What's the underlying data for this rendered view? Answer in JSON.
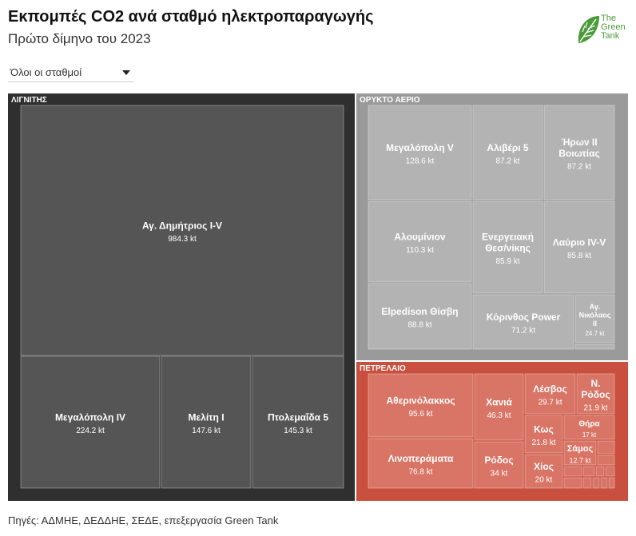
{
  "header": {
    "title": "Εκπομπές CO2 ανά σταθμό ηλεκτροπαραγωγής",
    "subtitle": "Πρώτο δίμηνο του 2023"
  },
  "logo": {
    "line1": "The",
    "line2": "Green",
    "line3": "Tank"
  },
  "filter": {
    "selected": "Όλοι οι σταθμοί"
  },
  "footer": {
    "source": "Πηγές: ΑΔΜΗΕ, ΔΕΔΔΗΕ, ΣΕΔΕ, επεξεργασία Green Tank"
  },
  "colors": {
    "lignite_group": "#2f2f2f",
    "lignite_tile": "#555555",
    "gas_group": "#9a9a9a",
    "gas_tile": "#b3b3b3",
    "oil_group": "#c9503e",
    "oil_tile": "#d97566",
    "logo_green": "#4a9a3a"
  },
  "chart_data": {
    "type": "treemap",
    "unit": "kt",
    "groups": [
      {
        "name": "ΛΙΓΝΙΤΗΣ",
        "items": [
          {
            "name": "Αγ. Δημήτριος I-V",
            "value": 984.3,
            "value_label": "984.3 kt"
          },
          {
            "name": "Μεγαλόπολη IV",
            "value": 224.2,
            "value_label": "224.2 kt"
          },
          {
            "name": "Μελίτη I",
            "value": 147.6,
            "value_label": "147.6 kt"
          },
          {
            "name": "Πτολεμαΐδα 5",
            "value": 145.3,
            "value_label": "145.3 kt"
          }
        ]
      },
      {
        "name": "ΟΡΥΚΤΟ ΑΕΡΙΟ",
        "items": [
          {
            "name": "Μεγαλόπολη V",
            "value": 128.6,
            "value_label": "128.6 kt"
          },
          {
            "name": "Αλιβέρι 5",
            "value": 87.2,
            "value_label": "87.2 kt"
          },
          {
            "name": "Ήρων II Βοιωτίας",
            "value": 87.2,
            "value_label": "87.2 kt"
          },
          {
            "name": "Αλουμίνιον",
            "value": 110.3,
            "value_label": "110.3 kt"
          },
          {
            "name": "Ενεργειακή Θεσ/νίκης",
            "value": 85.9,
            "value_label": "85.9 kt"
          },
          {
            "name": "Λαύριο IV-V",
            "value": 85.8,
            "value_label": "85.8 kt"
          },
          {
            "name": "Elpedison Θίσβη",
            "value": 88.8,
            "value_label": "88.8 kt"
          },
          {
            "name": "Κόρινθος Power",
            "value": 71.2,
            "value_label": "71.2 kt"
          },
          {
            "name": "Αγ. Νικόλαος II",
            "value": 24.7,
            "value_label": "24.7 kt"
          }
        ]
      },
      {
        "name": "ΠΕΤΡΕΛΑΙΟ",
        "items": [
          {
            "name": "Αθερινόλακκος",
            "value": 95.6,
            "value_label": "95.6 kt"
          },
          {
            "name": "Λινοπεράματα",
            "value": 76.8,
            "value_label": "76.8 kt"
          },
          {
            "name": "Χανιά",
            "value": 46.3,
            "value_label": "46.3 kt"
          },
          {
            "name": "Ρόδος",
            "value": 34,
            "value_label": "34 kt"
          },
          {
            "name": "Λέσβος",
            "value": 29.7,
            "value_label": "29.7 kt"
          },
          {
            "name": "Κως",
            "value": 21.8,
            "value_label": "21.8 kt"
          },
          {
            "name": "Χίος",
            "value": 20,
            "value_label": "20 kt"
          },
          {
            "name": "Ν. Ρόδος",
            "value": 21.9,
            "value_label": "21.9 kt"
          },
          {
            "name": "Θήρα",
            "value": 17,
            "value_label": "17 kt"
          },
          {
            "name": "Σάμος",
            "value": 12.7,
            "value_label": "12.7 kt"
          }
        ]
      }
    ]
  }
}
